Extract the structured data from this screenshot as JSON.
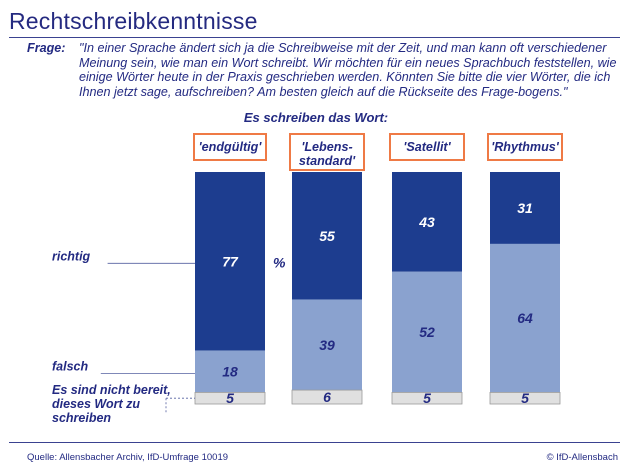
{
  "page": {
    "title": "Rechtschreibkenntnisse",
    "question_label": "Frage:",
    "question_text": "\"In einer Sprache ändert sich ja die Schreibweise mit der Zeit, und man kann oft verschiedener Meinung sein, wie man ein Wort schreibt. Wir möchten für ein neues Sprachbuch feststellen, wie einige Wörter heute in der Praxis geschrieben werden. Könnten Sie bitte die vier Wörter, die ich Ihnen jetzt sage, aufschreiben? Am besten gleich auf die Rückseite des Frage-bogens.\"",
    "subheading": "Es schreiben das Wort:",
    "source": "Quelle: Allensbacher Archiv, IfD-Umfrage 10019",
    "copyright": "© IfD-Allensbach"
  },
  "chart_data": {
    "type": "bar",
    "stacked": true,
    "unit": "%",
    "categories": [
      [
        "'endgültig'"
      ],
      [
        "'Lebens-",
        "standard'"
      ],
      [
        "'Satellit'"
      ],
      [
        "'Rhythmus'"
      ]
    ],
    "series": [
      {
        "name": "richtig",
        "label_lines": [
          "richtig"
        ],
        "values": [
          77,
          55,
          43,
          31
        ]
      },
      {
        "name": "falsch",
        "label_lines": [
          "falsch"
        ],
        "values": [
          18,
          39,
          52,
          64
        ]
      },
      {
        "name": "Es sind nicht bereit, dieses Wort zu schreiben",
        "label_lines": [
          "Es sind nicht bereit,",
          "dieses Wort zu",
          "schreiben"
        ],
        "values": [
          5,
          6,
          5,
          5
        ]
      }
    ],
    "colors": {
      "richtig": "#1d3d8f",
      "falsch": "#8aa2cf",
      "refused": "#e0e0e0",
      "box_border": "#ef7a45",
      "text_dark": "#232a82",
      "text_light": "#ffffff"
    },
    "ylim": [
      0,
      100
    ]
  }
}
